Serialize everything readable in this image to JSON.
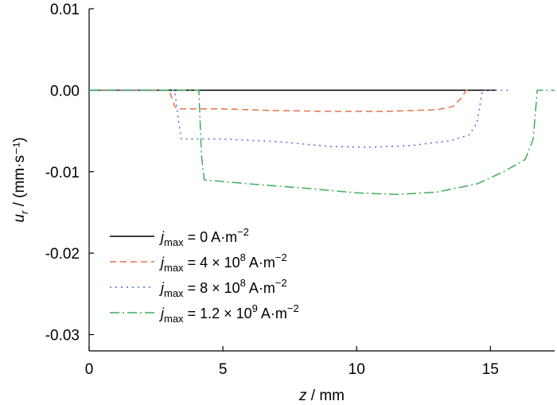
{
  "chart_data": {
    "type": "line",
    "xlabel": "z / mm",
    "ylabel": "u_r / (mm·s⁻¹)",
    "xlim": [
      0,
      17.4
    ],
    "ylim": [
      -0.032,
      0.01
    ],
    "x_ticks": [
      0,
      5,
      10,
      15
    ],
    "x_tick_labels": [
      "0",
      "5",
      "10",
      "15"
    ],
    "y_ticks": [
      0.01,
      0.0,
      -0.01,
      -0.02,
      -0.03
    ],
    "y_tick_labels": [
      "0.01",
      "0.00",
      "-0.01",
      "-0.02",
      "-0.03"
    ],
    "grid": false,
    "legend_position": "lower-left",
    "series": [
      {
        "name": "j_max = 0 A·m⁻²",
        "legend": {
          "sym": "j",
          "sub": "max",
          "pre": " = 0 A·m",
          "sup": "−2",
          "post": ""
        },
        "color": "#000000",
        "dash": "",
        "points": [
          [
            0,
            0
          ],
          [
            15.2,
            0
          ]
        ]
      },
      {
        "name": "j_max = 4 × 10⁸ A·m⁻²",
        "legend": {
          "sym": "j",
          "sub": "max",
          "pre": " = 4 × 10",
          "sup8": "8",
          "mid": " A·m",
          "sup": "−2"
        },
        "color": "#e8714a",
        "dash": "8,5",
        "points": [
          [
            0,
            0
          ],
          [
            3.0,
            0
          ],
          [
            3.2,
            -0.002
          ],
          [
            3.3,
            -0.0023
          ],
          [
            5,
            -0.0023
          ],
          [
            7,
            -0.0025
          ],
          [
            9,
            -0.0026
          ],
          [
            11,
            -0.0026
          ],
          [
            13,
            -0.0024
          ],
          [
            13.6,
            -0.002
          ],
          [
            13.9,
            -0.001
          ],
          [
            14.1,
            0
          ],
          [
            14.3,
            0
          ]
        ]
      },
      {
        "name": "j_max = 8 × 10⁸ A·m⁻²",
        "legend": {
          "sym": "j",
          "sub": "max",
          "pre": " = 8 × 10",
          "sup8": "8",
          "mid": " A·m",
          "sup": "−2"
        },
        "color": "#4a6fd8",
        "dash": "2,5",
        "points": [
          [
            0,
            0
          ],
          [
            3.2,
            0
          ],
          [
            3.35,
            -0.004
          ],
          [
            3.45,
            -0.006
          ],
          [
            5,
            -0.006
          ],
          [
            7,
            -0.0063
          ],
          [
            9,
            -0.0069
          ],
          [
            10.5,
            -0.007
          ],
          [
            12,
            -0.0068
          ],
          [
            13.5,
            -0.0062
          ],
          [
            14.2,
            -0.0055
          ],
          [
            14.5,
            -0.004
          ],
          [
            14.7,
            0
          ],
          [
            15.8,
            0
          ]
        ]
      },
      {
        "name": "j_max = 1.2 × 10⁹ A·m⁻²",
        "legend": {
          "sym": "j",
          "sub": "max",
          "pre": " = 1.2 × 10",
          "sup8": "9",
          "mid": " A·m",
          "sup": "−2"
        },
        "color": "#3cae5c",
        "dash": "12,4,2,4",
        "points": [
          [
            0,
            0
          ],
          [
            4.1,
            0
          ],
          [
            4.2,
            -0.008
          ],
          [
            4.3,
            -0.011
          ],
          [
            6,
            -0.0115
          ],
          [
            8,
            -0.012
          ],
          [
            10,
            -0.0126
          ],
          [
            11.5,
            -0.0128
          ],
          [
            13,
            -0.0125
          ],
          [
            14.5,
            -0.0115
          ],
          [
            15.5,
            -0.01
          ],
          [
            16.3,
            -0.0085
          ],
          [
            16.6,
            -0.006
          ],
          [
            16.75,
            0
          ],
          [
            17.4,
            0
          ]
        ]
      }
    ]
  }
}
